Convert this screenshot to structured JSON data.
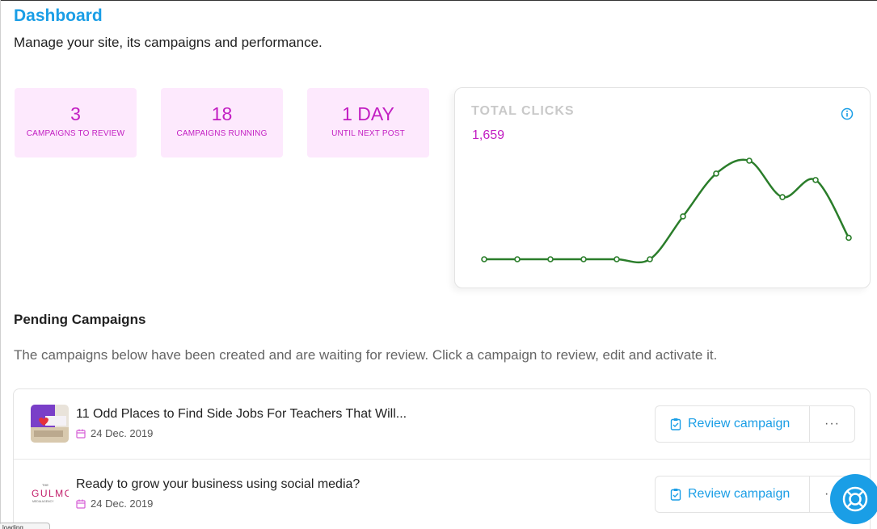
{
  "header": {
    "title": "Dashboard",
    "subtitle": "Manage your site, its campaigns and performance."
  },
  "stats": [
    {
      "value": "3",
      "label": "CAMPAIGNS TO REVIEW"
    },
    {
      "value": "18",
      "label": "CAMPAIGNS RUNNING"
    },
    {
      "value": "1 DAY",
      "label": "UNTIL NEXT POST"
    }
  ],
  "total_clicks": {
    "title": "TOTAL CLICKS",
    "value": "1,659",
    "info_icon": "info-icon",
    "line_color": "#2a7d2a",
    "series": [
      0,
      0,
      0,
      0,
      0,
      0,
      20,
      40,
      46,
      29,
      37,
      10
    ]
  },
  "pending": {
    "title": "Pending Campaigns",
    "description": "The campaigns below have been created and are waiting for review. Click a campaign to review, edit and activate it.",
    "campaigns": [
      {
        "title": "11 Odd Places to Find Side Jobs For Teachers That Will...",
        "date": "24 Dec. 2019",
        "action": "Review campaign",
        "more": "···"
      },
      {
        "title": "Ready to grow your business using social media?",
        "date": "24 Dec. 2019",
        "action": "Review campaign",
        "more": "···",
        "logo_text": "GULMC"
      }
    ]
  },
  "colors": {
    "accent": "#1a9ee6",
    "magenta": "#c21ec2",
    "stat_bg": "#fde9fd"
  },
  "status_bar": {
    "text": "loading..."
  }
}
